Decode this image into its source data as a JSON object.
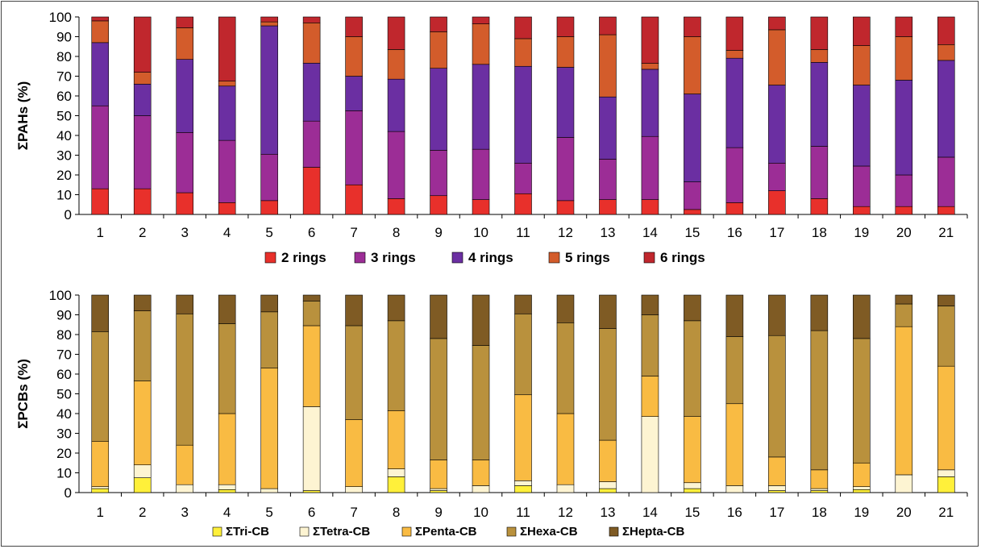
{
  "chart_data": [
    {
      "type": "bar",
      "stacked": true,
      "ylabel": "ΣPAHs (%)",
      "ylim": [
        0,
        100
      ],
      "yticks": [
        "0",
        "10",
        "20",
        "30",
        "40",
        "50",
        "60",
        "70",
        "80",
        "90",
        "100"
      ],
      "categories": [
        "1",
        "2",
        "3",
        "4",
        "5",
        "6",
        "7",
        "8",
        "9",
        "10",
        "11",
        "12",
        "13",
        "14",
        "15",
        "16",
        "17",
        "18",
        "19",
        "20",
        "21"
      ],
      "legend_position": "bottom",
      "series": [
        {
          "name": "2 rings",
          "color": "#e8302b",
          "values": [
            13,
            13,
            11,
            6,
            7,
            24,
            15,
            8,
            9.5,
            7.5,
            10.5,
            7,
            7.5,
            7.5,
            2.5,
            6,
            12,
            8,
            4,
            4,
            4
          ]
        },
        {
          "name": "3 rings",
          "color": "#9c2d96",
          "values": [
            42,
            37,
            30.5,
            31.5,
            23.5,
            23.5,
            37.5,
            34,
            23,
            25.5,
            15.5,
            32,
            20.5,
            32,
            14,
            28,
            14,
            26.5,
            20.5,
            16,
            25
          ]
        },
        {
          "name": "4 rings",
          "color": "#6b2fa2",
          "values": [
            32,
            16,
            37,
            27.5,
            65,
            29.5,
            17.5,
            26.5,
            41.5,
            43,
            49,
            35.5,
            31.5,
            34,
            44.5,
            45.5,
            39.5,
            42.5,
            41,
            48,
            49
          ]
        },
        {
          "name": "5 rings",
          "color": "#d35c2b",
          "values": [
            11,
            6,
            16,
            2.5,
            2,
            20.5,
            20,
            15,
            18.5,
            20.5,
            14,
            15.5,
            31.5,
            3,
            29,
            4,
            28,
            6.5,
            20,
            22,
            8
          ]
        },
        {
          "name": "6 rings",
          "color": "#c0272d",
          "values": [
            2,
            28,
            5.5,
            32.5,
            2.5,
            3,
            10,
            16.5,
            7.5,
            3.5,
            11,
            10,
            9,
            23.5,
            10,
            17,
            6.5,
            16.5,
            14.5,
            10,
            14
          ]
        }
      ]
    },
    {
      "type": "bar",
      "stacked": true,
      "ylabel": "ΣPCBs (%)",
      "ylim": [
        0,
        100
      ],
      "yticks": [
        "0",
        "10",
        "20",
        "30",
        "40",
        "50",
        "60",
        "70",
        "80",
        "90",
        "100"
      ],
      "categories": [
        "1",
        "2",
        "3",
        "4",
        "5",
        "6",
        "7",
        "8",
        "9",
        "10",
        "11",
        "12",
        "13",
        "14",
        "15",
        "16",
        "17",
        "18",
        "19",
        "20",
        "21"
      ],
      "legend_position": "bottom",
      "series": [
        {
          "name": "ΣTri-CB",
          "color": "#fff03a",
          "values": [
            2,
            7.5,
            0,
            1.5,
            0,
            1,
            0,
            8,
            1,
            0,
            3.5,
            0,
            2,
            0,
            2,
            0,
            1,
            1,
            1.5,
            0,
            8
          ]
        },
        {
          "name": "ΣTetra-CB",
          "color": "#fdf4d2",
          "values": [
            1,
            6.5,
            4,
            2.5,
            2,
            42.5,
            3,
            4,
            1,
            3.5,
            2.5,
            4,
            3.5,
            38.5,
            3,
            3.5,
            2.5,
            1,
            1.5,
            9,
            3.5
          ]
        },
        {
          "name": "ΣPenta-CB",
          "color": "#f9bb43",
          "values": [
            23,
            42.5,
            20,
            36,
            61,
            41,
            34,
            29.5,
            14.5,
            13,
            43.5,
            36,
            21,
            20.5,
            33.5,
            41.5,
            14.5,
            9.5,
            12,
            75,
            52.5
          ]
        },
        {
          "name": "ΣHexa-CB",
          "color": "#b9913d",
          "values": [
            55.5,
            35.5,
            66.5,
            45.5,
            28.5,
            12.5,
            47.5,
            45.5,
            61.5,
            58,
            41,
            46,
            56.5,
            31,
            48.5,
            34,
            61.5,
            70.5,
            63,
            11.5,
            30.5
          ]
        },
        {
          "name": "ΣHepta-CB",
          "color": "#7f5b24",
          "values": [
            18.5,
            8,
            9.5,
            14.5,
            8.5,
            3,
            15.5,
            13,
            22,
            25.5,
            9.5,
            14,
            17,
            10,
            13,
            21,
            20.5,
            18,
            22,
            4.5,
            5.5
          ]
        }
      ]
    }
  ]
}
